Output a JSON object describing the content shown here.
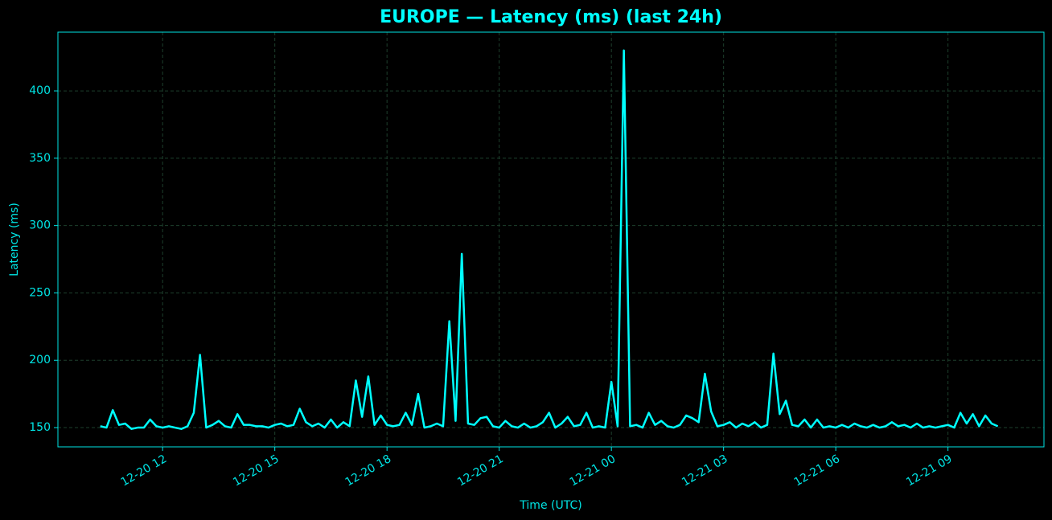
{
  "chart_data": {
    "type": "line",
    "title": "EUROPE — Latency (ms) (last 24h)",
    "x_label": "Time (UTC)",
    "y_label": "Latency (ms)",
    "grid": true,
    "xlim": [
      "12-20 09:12",
      "12-21 11:34"
    ],
    "ylim": [
      135.7,
      443.6
    ],
    "xticks": [
      {
        "value": "12-20 12:00",
        "label": "12-20 12"
      },
      {
        "value": "12-20 15:00",
        "label": "12-20 15"
      },
      {
        "value": "12-20 18:00",
        "label": "12-20 18"
      },
      {
        "value": "12-20 21:00",
        "label": "12-20 21"
      },
      {
        "value": "12-21 00:00",
        "label": "12-21 00"
      },
      {
        "value": "12-21 03:00",
        "label": "12-21 03"
      },
      {
        "value": "12-21 06:00",
        "label": "12-21 06"
      },
      {
        "value": "12-21 09:00",
        "label": "12-21 09"
      }
    ],
    "yticks": [
      150,
      200,
      250,
      300,
      350,
      400
    ],
    "x": [
      "12-20 10:20",
      "12-20 10:30",
      "12-20 10:40",
      "12-20 10:50",
      "12-20 11:00",
      "12-20 11:10",
      "12-20 11:20",
      "12-20 11:30",
      "12-20 11:40",
      "12-20 11:50",
      "12-20 12:00",
      "12-20 12:10",
      "12-20 12:20",
      "12-20 12:30",
      "12-20 12:40",
      "12-20 12:50",
      "12-20 13:00",
      "12-20 13:10",
      "12-20 13:20",
      "12-20 13:30",
      "12-20 13:40",
      "12-20 13:50",
      "12-20 14:00",
      "12-20 14:10",
      "12-20 14:20",
      "12-20 14:30",
      "12-20 14:40",
      "12-20 14:50",
      "12-20 15:00",
      "12-20 15:10",
      "12-20 15:20",
      "12-20 15:30",
      "12-20 15:40",
      "12-20 15:50",
      "12-20 16:00",
      "12-20 16:10",
      "12-20 16:20",
      "12-20 16:30",
      "12-20 16:40",
      "12-20 16:50",
      "12-20 17:00",
      "12-20 17:10",
      "12-20 17:20",
      "12-20 17:30",
      "12-20 17:40",
      "12-20 17:50",
      "12-20 18:00",
      "12-20 18:10",
      "12-20 18:20",
      "12-20 18:30",
      "12-20 18:40",
      "12-20 18:50",
      "12-20 19:00",
      "12-20 19:10",
      "12-20 19:20",
      "12-20 19:30",
      "12-20 19:40",
      "12-20 19:50",
      "12-20 20:00",
      "12-20 20:10",
      "12-20 20:20",
      "12-20 20:30",
      "12-20 20:40",
      "12-20 20:50",
      "12-20 21:00",
      "12-20 21:10",
      "12-20 21:20",
      "12-20 21:30",
      "12-20 21:40",
      "12-20 21:50",
      "12-20 22:00",
      "12-20 22:10",
      "12-20 22:20",
      "12-20 22:30",
      "12-20 22:40",
      "12-20 22:50",
      "12-20 23:00",
      "12-20 23:10",
      "12-20 23:20",
      "12-20 23:30",
      "12-20 23:40",
      "12-20 23:50",
      "12-21 00:00",
      "12-21 00:10",
      "12-21 00:20",
      "12-21 00:30",
      "12-21 00:40",
      "12-21 00:50",
      "12-21 01:00",
      "12-21 01:10",
      "12-21 01:20",
      "12-21 01:30",
      "12-21 01:40",
      "12-21 01:50",
      "12-21 02:00",
      "12-21 02:10",
      "12-21 02:20",
      "12-21 02:30",
      "12-21 02:40",
      "12-21 02:50",
      "12-21 03:00",
      "12-21 03:10",
      "12-21 03:20",
      "12-21 03:30",
      "12-21 03:40",
      "12-21 03:50",
      "12-21 04:00",
      "12-21 04:10",
      "12-21 04:20",
      "12-21 04:30",
      "12-21 04:40",
      "12-21 04:50",
      "12-21 05:00",
      "12-21 05:10",
      "12-21 05:20",
      "12-21 05:30",
      "12-21 05:40",
      "12-21 05:50",
      "12-21 06:00",
      "12-21 06:10",
      "12-21 06:20",
      "12-21 06:30",
      "12-21 06:40",
      "12-21 06:50",
      "12-21 07:00",
      "12-21 07:10",
      "12-21 07:20",
      "12-21 07:30",
      "12-21 07:40",
      "12-21 07:50",
      "12-21 08:00",
      "12-21 08:10",
      "12-21 08:20",
      "12-21 08:30",
      "12-21 08:40",
      "12-21 08:50",
      "12-21 09:00",
      "12-21 09:10",
      "12-21 09:20",
      "12-21 09:30",
      "12-21 09:40",
      "12-21 09:50",
      "12-21 10:00",
      "12-21 10:10",
      "12-21 10:20"
    ],
    "series": [
      {
        "name": "EUROPE",
        "color": "#00ffff",
        "values": [
          151,
          150,
          163,
          152,
          153,
          149,
          150,
          150,
          156,
          151,
          150,
          151,
          150,
          149,
          151,
          161,
          204,
          150,
          152,
          155,
          151,
          150,
          160,
          152,
          152,
          151,
          151,
          150,
          152,
          153,
          151,
          152,
          164,
          154,
          151,
          153,
          150,
          156,
          150,
          154,
          151,
          185,
          158,
          188,
          152,
          159,
          152,
          151,
          152,
          161,
          152,
          175,
          150,
          151,
          153,
          151,
          229,
          155,
          279,
          153,
          152,
          157,
          158,
          151,
          150,
          155,
          151,
          150,
          153,
          150,
          151,
          154,
          161,
          150,
          153,
          158,
          151,
          152,
          161,
          150,
          151,
          150,
          184,
          151,
          430,
          151,
          152,
          150,
          161,
          152,
          155,
          151,
          150,
          152,
          159,
          157,
          154,
          190,
          162,
          151,
          152,
          154,
          150,
          153,
          151,
          154,
          150,
          152,
          205,
          160,
          170,
          152,
          151,
          156,
          150,
          156,
          150,
          151,
          150,
          152,
          150,
          153,
          151,
          150,
          152,
          150,
          151,
          154,
          151,
          152,
          150,
          153,
          150,
          151,
          150,
          151,
          152,
          150,
          161,
          153,
          160,
          151,
          159,
          153,
          151
        ]
      }
    ]
  }
}
